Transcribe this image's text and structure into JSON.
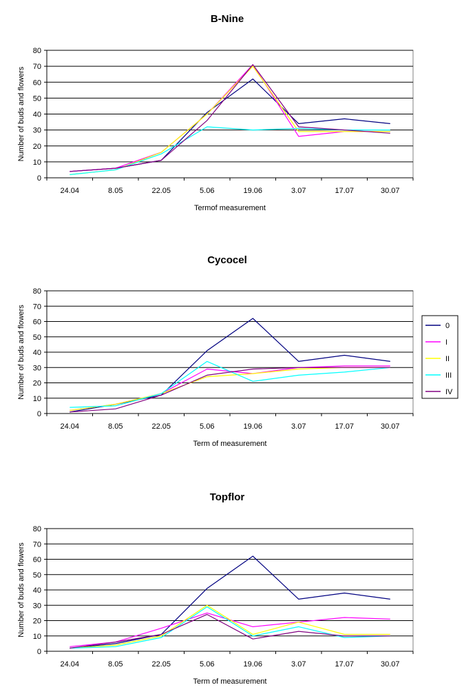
{
  "legend": {
    "entries": [
      "0",
      "I",
      "II",
      "III",
      "IV"
    ],
    "placement": "right"
  },
  "series_colors": [
    "#000080",
    "#ff00ff",
    "#ffff00",
    "#00ffff",
    "#800080"
  ],
  "chart_data": [
    {
      "type": "line",
      "title": "B-Nine",
      "xlabel": "Termof measurement",
      "ylabel": "Number of  buds and flowers",
      "categories": [
        "24.04",
        "8.05",
        "22.05",
        "5.06",
        "19.06",
        "3.07",
        "17.07",
        "30.07"
      ],
      "ylim": [
        0,
        80
      ],
      "yticks": [
        0,
        10,
        20,
        30,
        40,
        50,
        60,
        70,
        80
      ],
      "grid": true,
      "series": [
        {
          "name": "0",
          "values": [
            4,
            6,
            11,
            41,
            62,
            34,
            37,
            34
          ]
        },
        {
          "name": "I",
          "values": [
            4,
            6,
            16,
            40,
            71,
            26,
            29,
            29
          ]
        },
        {
          "name": "II",
          "values": [
            2,
            5,
            16,
            40,
            70,
            29,
            29,
            29
          ]
        },
        {
          "name": "III",
          "values": [
            2,
            5,
            15,
            32,
            30,
            31,
            30,
            30
          ]
        },
        {
          "name": "IV",
          "values": [
            4,
            6,
            11,
            36,
            71,
            32,
            30,
            28
          ]
        }
      ]
    },
    {
      "type": "line",
      "title": "Cycocel",
      "xlabel": "Term of  measurement",
      "ylabel": "Number of  buds and flowers",
      "categories": [
        "24.04",
        "8.05",
        "22.05",
        "5.06",
        "19.06",
        "3.07",
        "17.07",
        "30.07"
      ],
      "ylim": [
        0,
        80
      ],
      "yticks": [
        0,
        10,
        20,
        30,
        40,
        50,
        60,
        70,
        80
      ],
      "grid": true,
      "series": [
        {
          "name": "0",
          "values": [
            1,
            6,
            12,
            41,
            62,
            34,
            38,
            34
          ]
        },
        {
          "name": "I",
          "values": [
            2,
            6,
            13,
            29,
            26,
            30,
            31,
            31
          ]
        },
        {
          "name": "II",
          "values": [
            2,
            6,
            13,
            24,
            26,
            29,
            30,
            30
          ]
        },
        {
          "name": "III",
          "values": [
            4,
            5,
            13,
            34,
            21,
            25,
            27,
            30
          ]
        },
        {
          "name": "IV",
          "values": [
            1,
            3,
            12,
            25,
            29,
            30,
            30,
            30
          ]
        }
      ]
    },
    {
      "type": "line",
      "title": "Topflor",
      "xlabel": "Term of measurement",
      "ylabel": "Number of  buds and flowers",
      "categories": [
        "24.04",
        "8.05",
        "22.05",
        "5.06",
        "19.06",
        "3.07",
        "17.07",
        "30.07"
      ],
      "ylim": [
        0,
        80
      ],
      "yticks": [
        0,
        10,
        20,
        30,
        40,
        50,
        60,
        70,
        80
      ],
      "grid": true,
      "series": [
        {
          "name": "0",
          "values": [
            2,
            5,
            11,
            41,
            62,
            34,
            38,
            34
          ]
        },
        {
          "name": "I",
          "values": [
            3,
            6,
            15,
            25,
            16,
            19,
            22,
            21
          ]
        },
        {
          "name": "II",
          "values": [
            2,
            4,
            10,
            30,
            11,
            19,
            11,
            11
          ]
        },
        {
          "name": "III",
          "values": [
            2,
            3,
            9,
            29,
            10,
            16,
            9,
            10
          ]
        },
        {
          "name": "IV",
          "values": [
            2,
            6,
            11,
            24,
            8,
            13,
            10,
            10
          ]
        }
      ]
    }
  ]
}
